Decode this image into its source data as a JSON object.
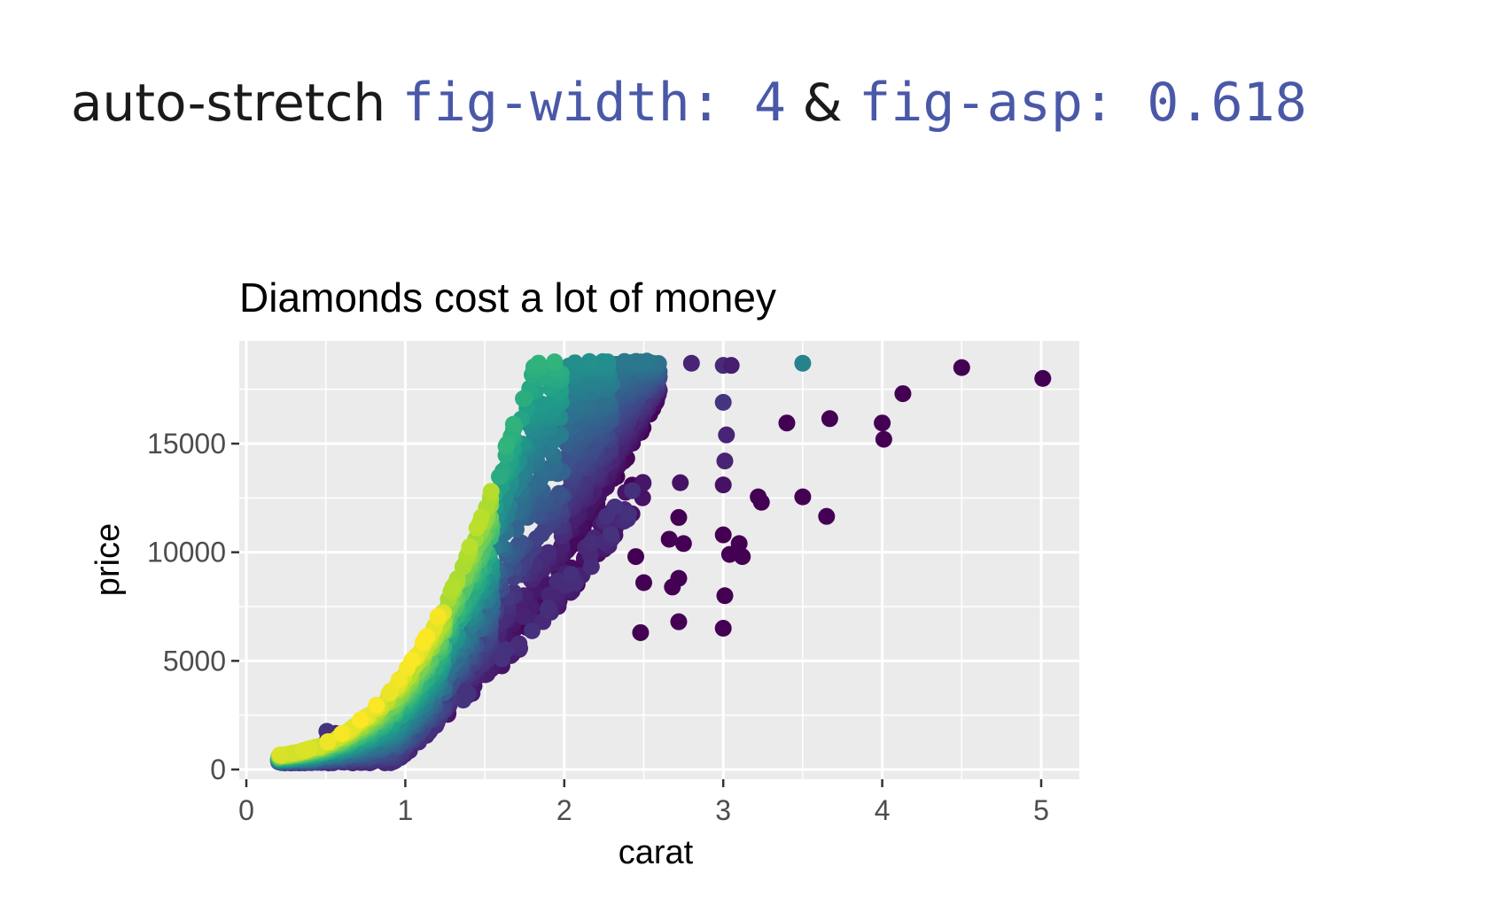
{
  "heading": {
    "prefix": "auto-stretch ",
    "code1": "fig-width: 4",
    "amp": " & ",
    "code2": "fig-asp: 0.618"
  },
  "colors": {
    "panel_bg": "#ebebeb",
    "gridline": "#ffffff",
    "code_text": "#4a58a8",
    "palette": "viridis"
  },
  "chart_data": {
    "type": "scatter",
    "title": "Diamonds cost a lot of money",
    "xlabel": "carat",
    "ylabel": "price",
    "xlim": [
      0,
      5.2
    ],
    "ylim": [
      -500,
      19300
    ],
    "xticks": [
      0,
      1,
      2,
      3,
      4,
      5
    ],
    "yticks": [
      0,
      5000,
      10000,
      15000
    ],
    "grid": true,
    "legend": "none",
    "points": [
      {
        "x": 3.5,
        "y": 18700,
        "c": 0.45
      },
      {
        "x": 4.5,
        "y": 18500,
        "c": 0.0
      },
      {
        "x": 5.01,
        "y": 18000,
        "c": 0.0
      },
      {
        "x": 4.13,
        "y": 17300,
        "c": 0.0
      },
      {
        "x": 3.4,
        "y": 15950,
        "c": 0.0
      },
      {
        "x": 3.67,
        "y": 16150,
        "c": 0.0
      },
      {
        "x": 4.0,
        "y": 15950,
        "c": 0.0
      },
      {
        "x": 4.01,
        "y": 15200,
        "c": 0.0
      },
      {
        "x": 3.22,
        "y": 12550,
        "c": 0.0
      },
      {
        "x": 3.24,
        "y": 12300,
        "c": 0.0
      },
      {
        "x": 3.5,
        "y": 12550,
        "c": 0.0
      },
      {
        "x": 3.65,
        "y": 11650,
        "c": 0.0
      },
      {
        "x": 3.0,
        "y": 6500,
        "c": 0.0
      },
      {
        "x": 3.01,
        "y": 8000,
        "c": 0.0
      },
      {
        "x": 3.04,
        "y": 9900,
        "c": 0.0
      },
      {
        "x": 3.1,
        "y": 10400,
        "c": 0.0
      },
      {
        "x": 3.12,
        "y": 9800,
        "c": 0.0
      },
      {
        "x": 3.0,
        "y": 10800,
        "c": 0.0
      },
      {
        "x": 3.0,
        "y": 13100,
        "c": 0.05
      },
      {
        "x": 3.01,
        "y": 14200,
        "c": 0.1
      },
      {
        "x": 3.02,
        "y": 15400,
        "c": 0.1
      },
      {
        "x": 3.0,
        "y": 16900,
        "c": 0.15
      },
      {
        "x": 3.0,
        "y": 18600,
        "c": 0.12
      },
      {
        "x": 3.05,
        "y": 18600,
        "c": 0.08
      },
      {
        "x": 2.8,
        "y": 18700,
        "c": 0.1
      },
      {
        "x": 2.73,
        "y": 13200,
        "c": 0.05
      },
      {
        "x": 2.72,
        "y": 11600,
        "c": 0.0
      },
      {
        "x": 2.75,
        "y": 10400,
        "c": 0.0
      },
      {
        "x": 2.66,
        "y": 10600,
        "c": 0.0
      },
      {
        "x": 2.72,
        "y": 8800,
        "c": 0.0
      },
      {
        "x": 2.68,
        "y": 8400,
        "c": 0.0
      },
      {
        "x": 2.45,
        "y": 9800,
        "c": 0.0
      },
      {
        "x": 2.5,
        "y": 8600,
        "c": 0.0
      },
      {
        "x": 2.48,
        "y": 6300,
        "c": 0.0
      },
      {
        "x": 2.72,
        "y": 6800,
        "c": 0.0
      }
    ],
    "clusters": [
      {
        "x0": 0.2,
        "x1": 0.45,
        "ymax": 2500,
        "c0": 0.15,
        "c1": 0.95
      },
      {
        "x0": 0.45,
        "x1": 0.75,
        "ymax": 6000,
        "c0": 0.1,
        "c1": 1.0
      },
      {
        "x0": 0.75,
        "x1": 1.0,
        "ymax": 9500,
        "c0": 0.1,
        "c1": 1.0
      },
      {
        "x0": 1.0,
        "x1": 1.25,
        "ymax": 18500,
        "c0": 0.1,
        "c1": 1.0
      },
      {
        "x0": 1.25,
        "x1": 1.55,
        "ymax": 18800,
        "c0": 0.05,
        "c1": 0.9
      },
      {
        "x0": 1.55,
        "x1": 2.0,
        "ymax": 18800,
        "c0": 0.02,
        "c1": 0.65
      },
      {
        "x0": 2.0,
        "x1": 2.3,
        "ymax": 18800,
        "c0": 0.0,
        "c1": 0.5
      },
      {
        "x0": 2.3,
        "x1": 2.6,
        "ymax": 18800,
        "c0": 0.0,
        "c1": 0.4
      }
    ]
  }
}
